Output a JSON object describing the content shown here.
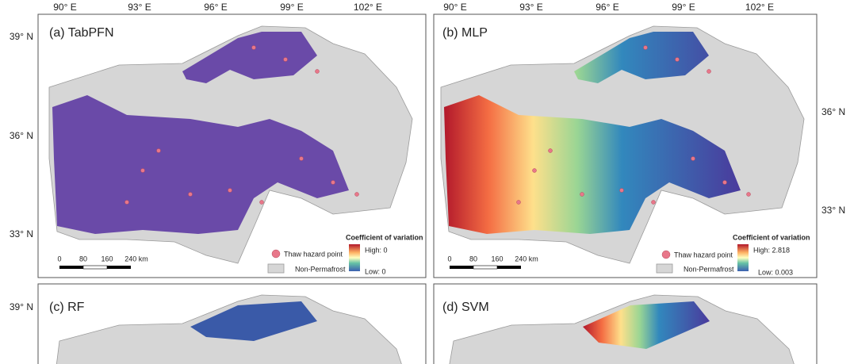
{
  "longitude_ticks": [
    "90° E",
    "93° E",
    "96° E",
    "99° E",
    "102° E"
  ],
  "latitude_ticks_left": [
    "39° N",
    "36° N",
    "33° N",
    "39° N"
  ],
  "latitude_ticks_right": [
    "36° N",
    "33° N"
  ],
  "legend": {
    "title": "Coefficient of variation",
    "hazard": "Thaw hazard point",
    "non_permafrost": "Non-Permafrost"
  },
  "scale_bar": [
    "0",
    "80",
    "160",
    "240 km"
  ],
  "panels": [
    {
      "title": "(a) TabPFN",
      "high": "High: 0",
      "low": "Low: 0"
    },
    {
      "title": "(b) MLP",
      "high": "High: 2.818",
      "low": "Low: 0.003"
    },
    {
      "title": "(c) RF"
    },
    {
      "title": "(d) SVM"
    }
  ]
}
